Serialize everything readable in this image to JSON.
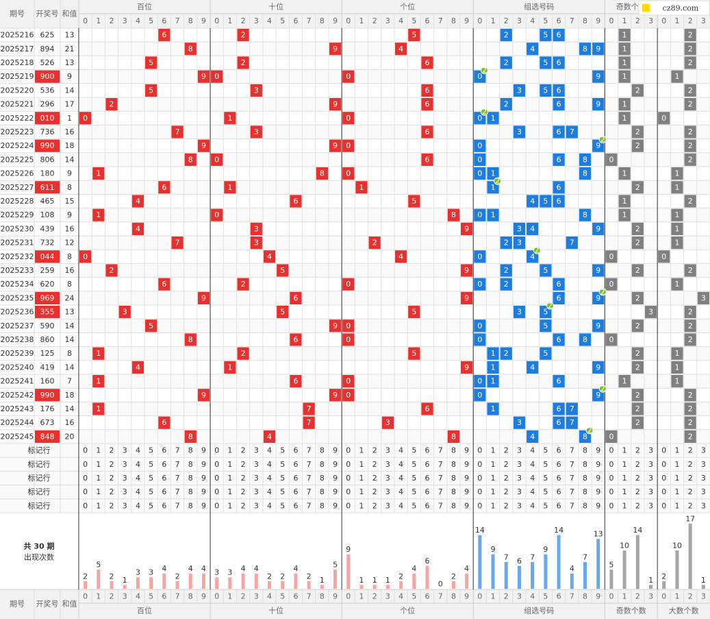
{
  "header": {
    "issue": "期号",
    "number": "开奖号",
    "sum": "和值",
    "groups": [
      "百位",
      "十位",
      "个位",
      "组选号码",
      "奇数个数",
      "大数个数"
    ]
  },
  "digits": [
    0,
    1,
    2,
    3,
    4,
    5,
    6,
    7,
    8,
    9
  ],
  "counts": [
    0,
    1,
    2,
    3
  ],
  "logo": "cz89.com",
  "rows": [
    {
      "issue": "2025216",
      "number": "625",
      "sum": 13,
      "bai": 6,
      "shi": 2,
      "ge": 5,
      "group": [
        2,
        5,
        6
      ],
      "odd": 1,
      "big": 2
    },
    {
      "issue": "2025217",
      "number": "894",
      "sum": 21,
      "bai": 8,
      "shi": 9,
      "ge": 4,
      "group": [
        4,
        8,
        9
      ],
      "odd": 1,
      "big": 2
    },
    {
      "issue": "2025218",
      "number": "526",
      "sum": 13,
      "bai": 5,
      "shi": 2,
      "ge": 6,
      "group": [
        2,
        5,
        6
      ],
      "odd": 1,
      "big": 2
    },
    {
      "issue": "2025219",
      "number": "900",
      "sum": 9,
      "bai": 9,
      "shi": 0,
      "ge": 0,
      "group": [
        0,
        9
      ],
      "repeat_digit": 0,
      "repeat_count": 2,
      "odd": 1,
      "big": 1
    },
    {
      "issue": "2025220",
      "number": "536",
      "sum": 14,
      "bai": 5,
      "shi": 3,
      "ge": 6,
      "group": [
        3,
        5,
        6
      ],
      "odd": 2,
      "big": 2
    },
    {
      "issue": "2025221",
      "number": "296",
      "sum": 17,
      "bai": 2,
      "shi": 9,
      "ge": 6,
      "group": [
        2,
        6,
        9
      ],
      "odd": 1,
      "big": 2
    },
    {
      "issue": "2025222",
      "number": "010",
      "sum": 1,
      "bai": 0,
      "shi": 1,
      "ge": 0,
      "group": [
        0,
        1
      ],
      "repeat_digit": 0,
      "repeat_count": 2,
      "odd": 1,
      "big": 0
    },
    {
      "issue": "2025223",
      "number": "736",
      "sum": 16,
      "bai": 7,
      "shi": 3,
      "ge": 6,
      "group": [
        3,
        6,
        7
      ],
      "odd": 2,
      "big": 2
    },
    {
      "issue": "2025224",
      "number": "990",
      "sum": 18,
      "bai": 9,
      "shi": 9,
      "ge": 0,
      "group": [
        0,
        9
      ],
      "repeat_digit": 9,
      "repeat_count": 2,
      "odd": 2,
      "big": 2
    },
    {
      "issue": "2025225",
      "number": "806",
      "sum": 14,
      "bai": 8,
      "shi": 0,
      "ge": 6,
      "group": [
        0,
        6,
        8
      ],
      "odd": 0,
      "big": 2
    },
    {
      "issue": "2025226",
      "number": "180",
      "sum": 9,
      "bai": 1,
      "shi": 8,
      "ge": 0,
      "group": [
        0,
        1,
        8
      ],
      "odd": 1,
      "big": 1
    },
    {
      "issue": "2025227",
      "number": "611",
      "sum": 8,
      "bai": 6,
      "shi": 1,
      "ge": 1,
      "group": [
        1,
        6
      ],
      "repeat_digit": 1,
      "repeat_count": 2,
      "odd": 2,
      "big": 1
    },
    {
      "issue": "2025228",
      "number": "465",
      "sum": 15,
      "bai": 4,
      "shi": 6,
      "ge": 5,
      "group": [
        4,
        5,
        6
      ],
      "odd": 1,
      "big": 2
    },
    {
      "issue": "2025229",
      "number": "108",
      "sum": 9,
      "bai": 1,
      "shi": 0,
      "ge": 8,
      "group": [
        0,
        1,
        8
      ],
      "odd": 1,
      "big": 1
    },
    {
      "issue": "2025230",
      "number": "439",
      "sum": 16,
      "bai": 4,
      "shi": 3,
      "ge": 9,
      "group": [
        3,
        4,
        9
      ],
      "odd": 2,
      "big": 1
    },
    {
      "issue": "2025231",
      "number": "732",
      "sum": 12,
      "bai": 7,
      "shi": 3,
      "ge": 2,
      "group": [
        2,
        3,
        7
      ],
      "odd": 2,
      "big": 1
    },
    {
      "issue": "2025232",
      "number": "044",
      "sum": 8,
      "bai": 0,
      "shi": 4,
      "ge": 4,
      "group": [
        0,
        4
      ],
      "repeat_digit": 4,
      "repeat_count": 2,
      "odd": 0,
      "big": 0
    },
    {
      "issue": "2025233",
      "number": "259",
      "sum": 16,
      "bai": 2,
      "shi": 5,
      "ge": 9,
      "group": [
        2,
        5,
        9
      ],
      "odd": 2,
      "big": 2
    },
    {
      "issue": "2025234",
      "number": "620",
      "sum": 8,
      "bai": 6,
      "shi": 2,
      "ge": 0,
      "group": [
        0,
        2,
        6
      ],
      "odd": 0,
      "big": 1
    },
    {
      "issue": "2025235",
      "number": "969",
      "sum": 24,
      "bai": 9,
      "shi": 6,
      "ge": 9,
      "group": [
        6,
        9
      ],
      "repeat_digit": 9,
      "repeat_count": 2,
      "odd": 2,
      "big": 3
    },
    {
      "issue": "2025236",
      "number": "355",
      "sum": 13,
      "bai": 3,
      "shi": 5,
      "ge": 5,
      "group": [
        3,
        5
      ],
      "repeat_digit": 5,
      "repeat_count": 2,
      "odd": 3,
      "big": 2
    },
    {
      "issue": "2025237",
      "number": "590",
      "sum": 14,
      "bai": 5,
      "shi": 9,
      "ge": 0,
      "group": [
        0,
        5,
        9
      ],
      "odd": 2,
      "big": 2
    },
    {
      "issue": "2025238",
      "number": "860",
      "sum": 14,
      "bai": 8,
      "shi": 6,
      "ge": 0,
      "group": [
        0,
        6,
        8
      ],
      "odd": 0,
      "big": 2
    },
    {
      "issue": "2025239",
      "number": "125",
      "sum": 8,
      "bai": 1,
      "shi": 2,
      "ge": 5,
      "group": [
        1,
        2,
        5
      ],
      "odd": 2,
      "big": 1
    },
    {
      "issue": "2025240",
      "number": "419",
      "sum": 14,
      "bai": 4,
      "shi": 1,
      "ge": 9,
      "group": [
        1,
        4,
        9
      ],
      "odd": 2,
      "big": 1
    },
    {
      "issue": "2025241",
      "number": "160",
      "sum": 7,
      "bai": 1,
      "shi": 6,
      "ge": 0,
      "group": [
        0,
        1,
        6
      ],
      "odd": 1,
      "big": 1
    },
    {
      "issue": "2025242",
      "number": "990",
      "sum": 18,
      "bai": 9,
      "shi": 9,
      "ge": 0,
      "group": [
        0,
        9
      ],
      "repeat_digit": 9,
      "repeat_count": 2,
      "odd": 2,
      "big": 2
    },
    {
      "issue": "2025243",
      "number": "176",
      "sum": 14,
      "bai": 1,
      "shi": 7,
      "ge": 6,
      "group": [
        1,
        6,
        7
      ],
      "odd": 2,
      "big": 2
    },
    {
      "issue": "2025244",
      "number": "673",
      "sum": 16,
      "bai": 6,
      "shi": 7,
      "ge": 3,
      "group": [
        3,
        6,
        7
      ],
      "odd": 2,
      "big": 2
    },
    {
      "issue": "2025245",
      "number": "848",
      "sum": 20,
      "bai": 8,
      "shi": 4,
      "ge": 8,
      "group": [
        4,
        8
      ],
      "repeat_digit": 8,
      "repeat_count": 2,
      "odd": 0,
      "big": 2
    }
  ],
  "marker_label": "标记行",
  "stats": {
    "label": "共 30 期",
    "sub": "出现次数",
    "bai": [
      2,
      5,
      2,
      1,
      3,
      3,
      4,
      2,
      4,
      4
    ],
    "shi": [
      3,
      3,
      4,
      4,
      2,
      2,
      4,
      2,
      1,
      5
    ],
    "ge": [
      9,
      1,
      1,
      1,
      2,
      4,
      6,
      0,
      2,
      4
    ],
    "group": [
      14,
      9,
      7,
      6,
      7,
      9,
      14,
      4,
      7,
      13
    ],
    "odd": [
      5,
      10,
      14,
      1
    ],
    "big": [
      2,
      10,
      17,
      1
    ]
  }
}
